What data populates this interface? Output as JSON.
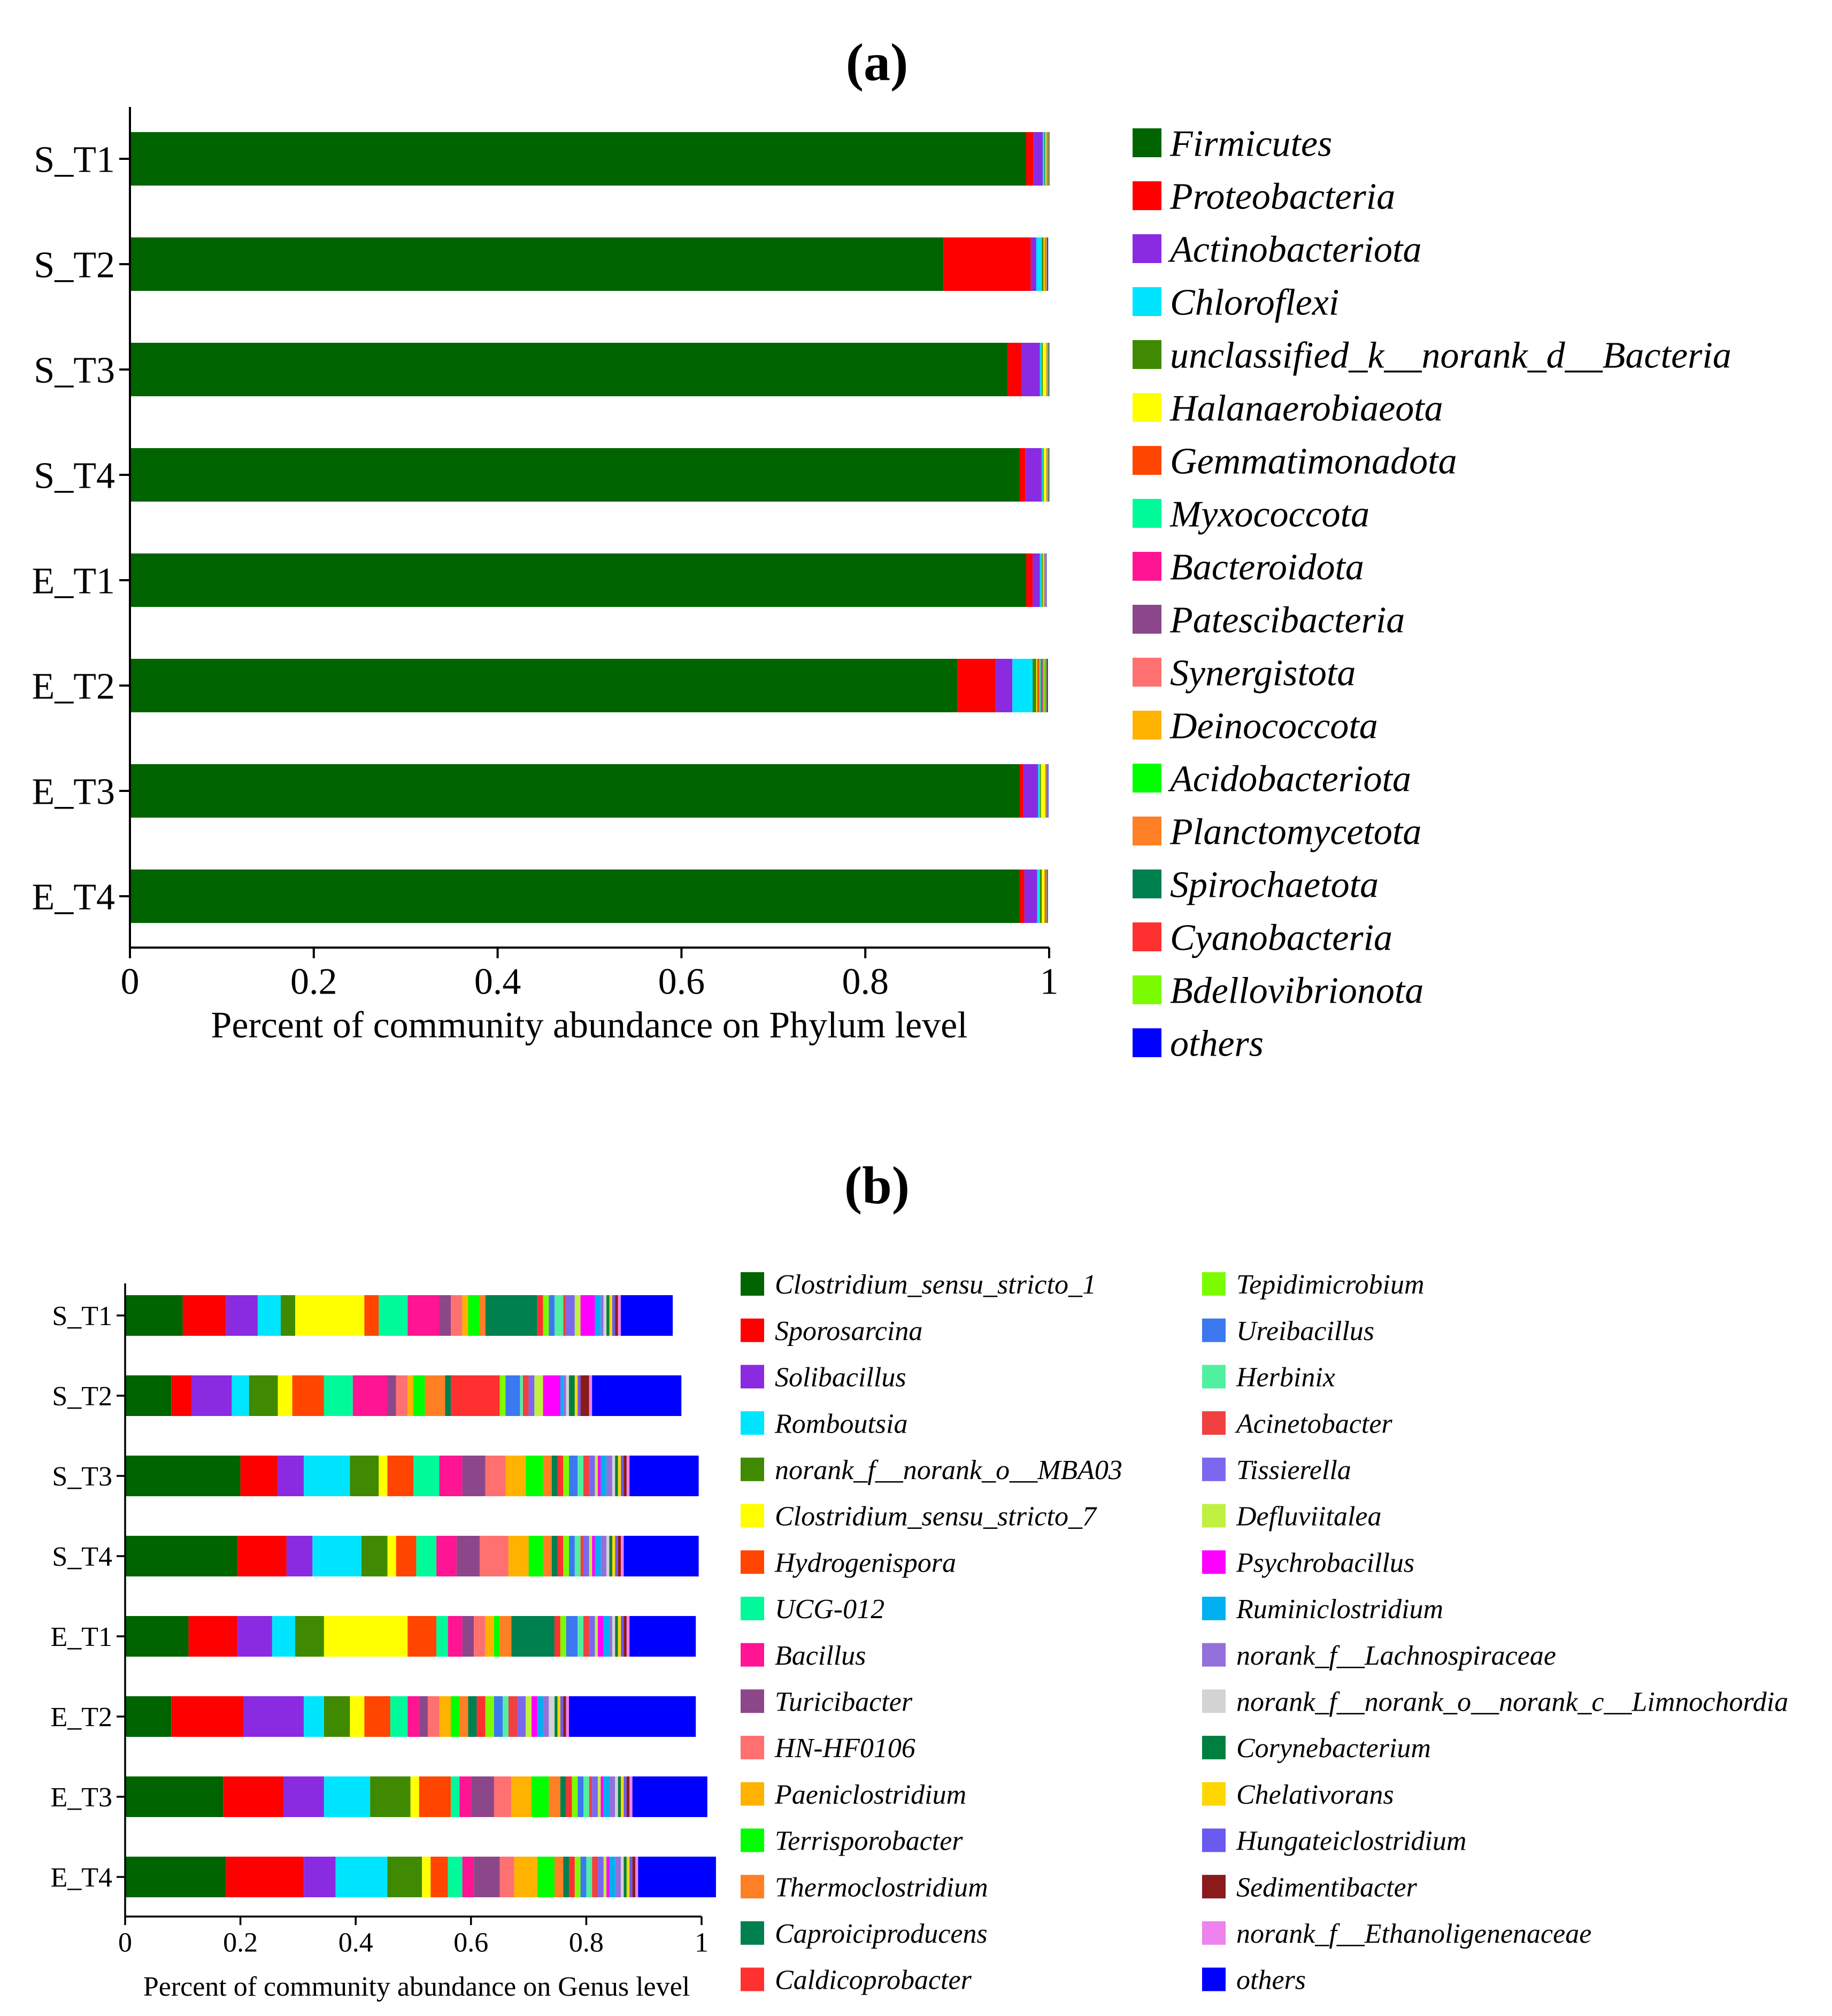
{
  "chart_data": [
    {
      "panel_label": "(a)",
      "type": "bar",
      "orientation": "horizontal",
      "stacked": true,
      "xlabel": "Percent of community abundance on Phylum level",
      "xlim": [
        0,
        1
      ],
      "xticks": [
        "0",
        "0.2",
        "0.4",
        "0.6",
        "0.8",
        "1"
      ],
      "categories": [
        "S_T1",
        "S_T2",
        "S_T3",
        "S_T4",
        "E_T1",
        "E_T2",
        "E_T3",
        "E_T4"
      ],
      "legend_position": "right",
      "series": [
        {
          "name": "Firmicutes",
          "color": "#006400",
          "values": [
            0.975,
            0.885,
            0.955,
            0.968,
            0.975,
            0.9,
            0.968,
            0.968
          ]
        },
        {
          "name": "Proteobacteria",
          "color": "#FF0000",
          "values": [
            0.008,
            0.095,
            0.015,
            0.006,
            0.007,
            0.042,
            0.004,
            0.005
          ]
        },
        {
          "name": "Actinobacteriota",
          "color": "#8A2BE2",
          "values": [
            0.01,
            0.006,
            0.02,
            0.018,
            0.008,
            0.018,
            0.016,
            0.014
          ]
        },
        {
          "name": "Chloroflexi",
          "color": "#00E5FF",
          "values": [
            0.002,
            0.006,
            0.002,
            0.001,
            0.002,
            0.022,
            0.002,
            0.003
          ]
        },
        {
          "name": "unclassified_k__norank_d__Bacteria",
          "color": "#3F8A00",
          "values": [
            0.001,
            0.002,
            0.001,
            0.001,
            0.001,
            0.004,
            0.001,
            0.002
          ]
        },
        {
          "name": "Halanaerobiaeota",
          "color": "#FFFF00",
          "values": [
            0.001,
            0.001,
            0.004,
            0.003,
            0.001,
            0.001,
            0.005,
            0.003
          ]
        },
        {
          "name": "Gemmatimonadota",
          "color": "#FF4500",
          "values": [
            0.0005,
            0.0008,
            0.0005,
            0.0005,
            0.0005,
            0.002,
            0.0005,
            0.0008
          ]
        },
        {
          "name": "Myxococcota",
          "color": "#00FA9A",
          "values": [
            0.0005,
            0.0005,
            0.0003,
            0.0003,
            0.0004,
            0.002,
            0.0003,
            0.0004
          ]
        },
        {
          "name": "Bacteroidota",
          "color": "#FF1493",
          "values": [
            0.0003,
            0.0003,
            0.0003,
            0.0003,
            0.0003,
            0.001,
            0.0003,
            0.0003
          ]
        },
        {
          "name": "Patescibacteria",
          "color": "#8B4789",
          "values": [
            0.0003,
            0.0003,
            0.0003,
            0.0003,
            0.0003,
            0.001,
            0.0003,
            0.0003
          ]
        },
        {
          "name": "Synergistota",
          "color": "#FF7070",
          "values": [
            0.0002,
            0.0002,
            0.0002,
            0.0002,
            0.0002,
            0.001,
            0.0002,
            0.0002
          ]
        },
        {
          "name": "Deinococcota",
          "color": "#FFB300",
          "values": [
            0.0002,
            0.0002,
            0.0002,
            0.0002,
            0.0002,
            0.001,
            0.0002,
            0.0002
          ]
        },
        {
          "name": "Acidobacteriota",
          "color": "#00FF00",
          "values": [
            0.0002,
            0.0002,
            0.0002,
            0.0002,
            0.0002,
            0.001,
            0.0002,
            0.0002
          ]
        },
        {
          "name": "Planctomycetota",
          "color": "#FF7F24",
          "values": [
            0.0002,
            0.0002,
            0.0002,
            0.0002,
            0.0002,
            0.0005,
            0.0002,
            0.0002
          ]
        },
        {
          "name": "Spirochaetota",
          "color": "#007F4F",
          "values": [
            0.0002,
            0.0002,
            0.0002,
            0.0002,
            0.0002,
            0.0005,
            0.0002,
            0.0002
          ]
        },
        {
          "name": "Cyanobacteria",
          "color": "#FF3030",
          "values": [
            0.0001,
            0.0001,
            0.0001,
            0.0001,
            0.0001,
            0.0003,
            0.0001,
            0.0001
          ]
        },
        {
          "name": "Bdellovibrionota",
          "color": "#7CFC00",
          "values": [
            0.0001,
            0.0001,
            0.0001,
            0.0001,
            0.0001,
            0.0003,
            0.0001,
            0.0001
          ]
        },
        {
          "name": "others",
          "color": "#0000FF",
          "values": [
            0.0005,
            0.0008,
            0.0006,
            0.0006,
            0.0005,
            0.001,
            0.0006,
            0.0006
          ]
        }
      ]
    },
    {
      "panel_label": "(b)",
      "type": "bar",
      "orientation": "horizontal",
      "stacked": true,
      "xlabel": "Percent of community abundance on Genus level",
      "xlim": [
        0,
        1
      ],
      "xticks": [
        "0",
        "0.2",
        "0.4",
        "0.6",
        "0.8",
        "1"
      ],
      "categories": [
        "S_T1",
        "S_T2",
        "S_T3",
        "S_T4",
        "E_T1",
        "E_T2",
        "E_T3",
        "E_T4"
      ],
      "legend_position": "right",
      "series": [
        {
          "name": "Clostridium_sensu_stricto_1",
          "color": "#006400",
          "values": [
            0.1,
            0.08,
            0.2,
            0.195,
            0.11,
            0.08,
            0.17,
            0.175
          ]
        },
        {
          "name": "Sporosarcina",
          "color": "#FF0000",
          "values": [
            0.075,
            0.035,
            0.065,
            0.085,
            0.085,
            0.125,
            0.105,
            0.135
          ]
        },
        {
          "name": "Solibacillus",
          "color": "#8A2BE2",
          "values": [
            0.055,
            0.07,
            0.045,
            0.045,
            0.06,
            0.105,
            0.07,
            0.055
          ]
        },
        {
          "name": "Romboutsia",
          "color": "#00E5FF",
          "values": [
            0.04,
            0.03,
            0.08,
            0.085,
            0.04,
            0.035,
            0.08,
            0.09
          ]
        },
        {
          "name": "norank_f__norank_o__MBA03",
          "color": "#3F8A00",
          "values": [
            0.025,
            0.05,
            0.05,
            0.045,
            0.05,
            0.045,
            0.07,
            0.06
          ]
        },
        {
          "name": "Clostridium_sensu_stricto_7",
          "color": "#FFFF00",
          "values": [
            0.12,
            0.025,
            0.015,
            0.015,
            0.145,
            0.025,
            0.015,
            0.015
          ]
        },
        {
          "name": "Hydrogenispora",
          "color": "#FF4500",
          "values": [
            0.025,
            0.055,
            0.045,
            0.035,
            0.05,
            0.045,
            0.055,
            0.03
          ]
        },
        {
          "name": "UCG-012",
          "color": "#00FA9A",
          "values": [
            0.05,
            0.05,
            0.045,
            0.035,
            0.02,
            0.03,
            0.015,
            0.025
          ]
        },
        {
          "name": "Bacillus",
          "color": "#FF1493",
          "values": [
            0.055,
            0.06,
            0.04,
            0.035,
            0.025,
            0.02,
            0.02,
            0.02
          ]
        },
        {
          "name": "Turicibacter",
          "color": "#8B4789",
          "values": [
            0.02,
            0.015,
            0.04,
            0.04,
            0.02,
            0.015,
            0.04,
            0.045
          ]
        },
        {
          "name": "HN-HF0106",
          "color": "#FF7070",
          "values": [
            0.02,
            0.02,
            0.035,
            0.05,
            0.02,
            0.02,
            0.03,
            0.025
          ]
        },
        {
          "name": "Paeniclostridium",
          "color": "#FFB300",
          "values": [
            0.01,
            0.01,
            0.035,
            0.035,
            0.015,
            0.02,
            0.035,
            0.04
          ]
        },
        {
          "name": "Terrisporobacter",
          "color": "#00FF00",
          "values": [
            0.02,
            0.02,
            0.03,
            0.025,
            0.01,
            0.015,
            0.03,
            0.03
          ]
        },
        {
          "name": "Thermoclostridium",
          "color": "#FF7F24",
          "values": [
            0.01,
            0.035,
            0.015,
            0.015,
            0.02,
            0.015,
            0.02,
            0.015
          ]
        },
        {
          "name": "Caproiciproducens",
          "color": "#007F4F",
          "values": [
            0.09,
            0.01,
            0.01,
            0.01,
            0.075,
            0.015,
            0.01,
            0.01
          ]
        },
        {
          "name": "Caldicoprobacter",
          "color": "#FF3030",
          "values": [
            0.01,
            0.085,
            0.01,
            0.01,
            0.01,
            0.015,
            0.01,
            0.01
          ]
        },
        {
          "name": "Tepidimicrobium",
          "color": "#7CFC00",
          "values": [
            0.01,
            0.01,
            0.01,
            0.01,
            0.01,
            0.015,
            0.01,
            0.01
          ]
        },
        {
          "name": "Ureibacillus",
          "color": "#3C78F0",
          "values": [
            0.01,
            0.025,
            0.015,
            0.01,
            0.02,
            0.015,
            0.01,
            0.01
          ]
        },
        {
          "name": "Herbinix",
          "color": "#50F0A0",
          "values": [
            0.015,
            0.005,
            0.01,
            0.01,
            0.01,
            0.01,
            0.01,
            0.01
          ]
        },
        {
          "name": "Acinetobacter",
          "color": "#F04040",
          "values": [
            0.005,
            0.01,
            0.01,
            0.005,
            0.01,
            0.015,
            0.005,
            0.01
          ]
        },
        {
          "name": "Tissierella",
          "color": "#7B68EE",
          "values": [
            0.015,
            0.01,
            0.01,
            0.01,
            0.01,
            0.015,
            0.01,
            0.01
          ]
        },
        {
          "name": "Defluviitalea",
          "color": "#C0F040",
          "values": [
            0.01,
            0.015,
            0.005,
            0.005,
            0.005,
            0.01,
            0.005,
            0.005
          ]
        },
        {
          "name": "Psychrobacillus",
          "color": "#FF00FF",
          "values": [
            0.025,
            0.03,
            0.005,
            0.005,
            0.01,
            0.01,
            0.005,
            0.005
          ]
        },
        {
          "name": "Ruminiclostridium",
          "color": "#00B0F0",
          "values": [
            0.01,
            0.005,
            0.01,
            0.01,
            0.01,
            0.01,
            0.01,
            0.01
          ]
        },
        {
          "name": "norank_f__Lachnospiraceae",
          "color": "#9370DB",
          "values": [
            0.005,
            0.005,
            0.01,
            0.01,
            0.005,
            0.01,
            0.01,
            0.01
          ]
        },
        {
          "name": "norank_f__norank_o__norank_c__Limnochordia",
          "color": "#D3D3D3",
          "values": [
            0.005,
            0.005,
            0.005,
            0.005,
            0.005,
            0.01,
            0.005,
            0.005
          ]
        },
        {
          "name": "Corynebacterium",
          "color": "#008040",
          "values": [
            0.005,
            0.01,
            0.005,
            0.005,
            0.005,
            0.005,
            0.005,
            0.005
          ]
        },
        {
          "name": "Chelativorans",
          "color": "#FFD700",
          "values": [
            0.005,
            0.005,
            0.005,
            0.005,
            0.005,
            0.005,
            0.005,
            0.005
          ]
        },
        {
          "name": "Hungateiclostridium",
          "color": "#6A5AF0",
          "values": [
            0.005,
            0.005,
            0.005,
            0.005,
            0.005,
            0.005,
            0.005,
            0.005
          ]
        },
        {
          "name": "Sedimentibacter",
          "color": "#8B1A1A",
          "values": [
            0.005,
            0.015,
            0.005,
            0.005,
            0.005,
            0.005,
            0.005,
            0.005
          ]
        },
        {
          "name": "norank_f__Ethanoligenenaceae",
          "color": "#EE82EE",
          "values": [
            0.005,
            0.005,
            0.005,
            0.005,
            0.005,
            0.005,
            0.005,
            0.005
          ]
        },
        {
          "name": "others",
          "color": "#0000FF",
          "values": [
            0.09,
            0.155,
            0.12,
            0.13,
            0.115,
            0.22,
            0.13,
            0.135
          ]
        }
      ]
    }
  ]
}
